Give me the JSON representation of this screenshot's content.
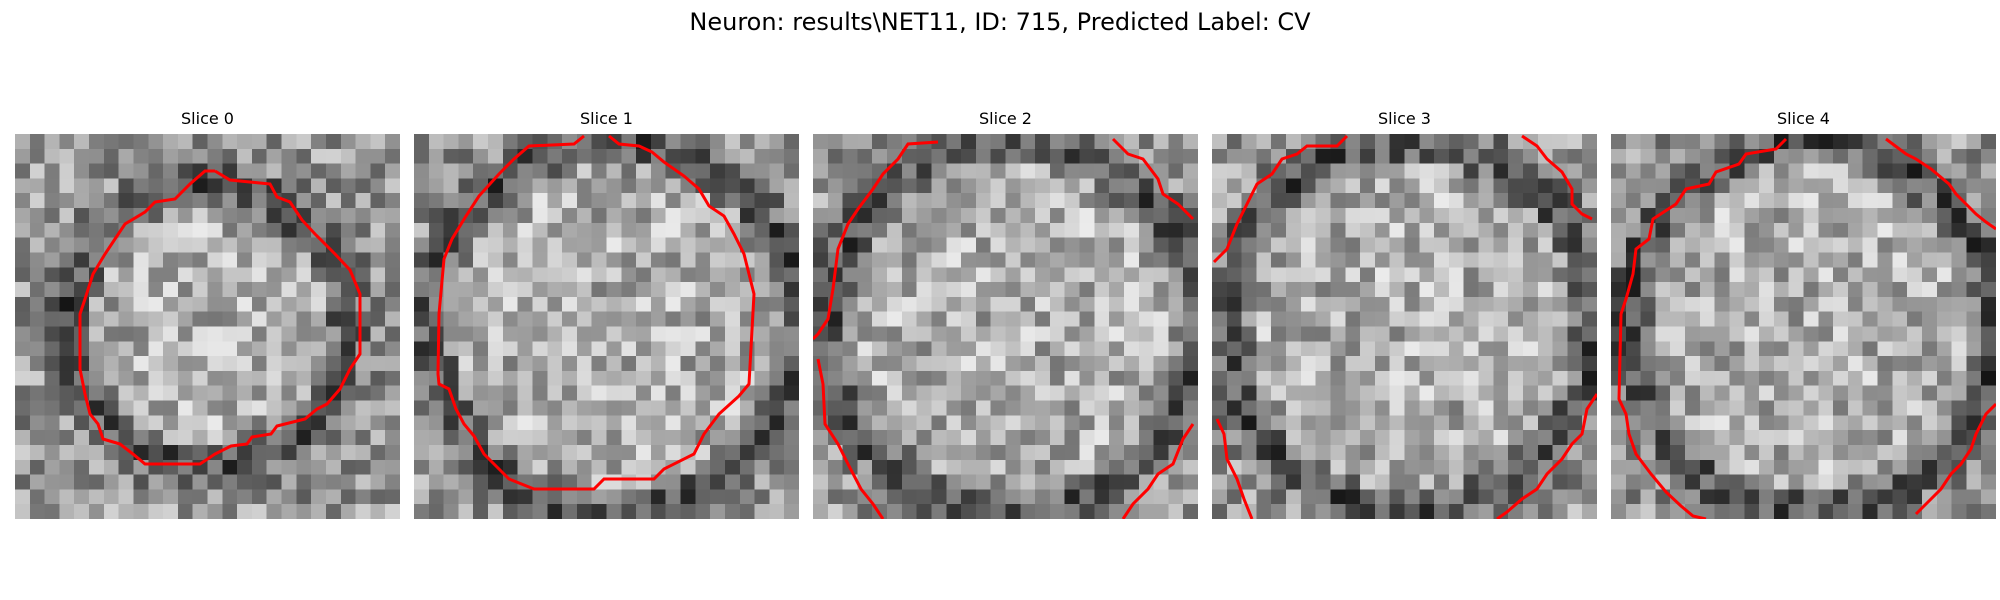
{
  "figure": {
    "title": "Neuron: results\\NET11, ID: 715, Predicted Label: CV"
  },
  "colors": {
    "contour": "#ff0000"
  },
  "slices": [
    {
      "title": "Slice 0"
    },
    {
      "title": "Slice 1"
    },
    {
      "title": "Slice 2"
    },
    {
      "title": "Slice 3"
    },
    {
      "title": "Slice 4"
    }
  ]
}
